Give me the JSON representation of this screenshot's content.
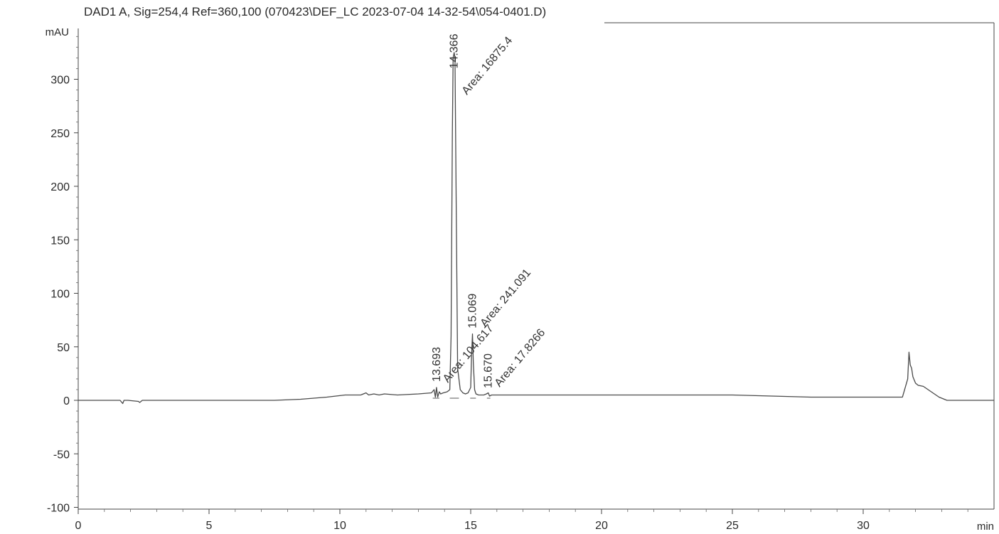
{
  "chart_data": {
    "type": "line",
    "title": "DAD1 A, Sig=254,4 Ref=360,100 (070423\\DEF_LC 2023-07-04 14-32-54\\054-0401.D)",
    "ylabel": "mAU",
    "xlabel": "min",
    "xlim": [
      0,
      35
    ],
    "ylim": [
      -100,
      345
    ],
    "grid": false,
    "x_ticks": [
      "0",
      "5",
      "10",
      "15",
      "20",
      "25",
      "30"
    ],
    "x_tick_values": [
      0,
      5,
      10,
      15,
      20,
      25,
      30
    ],
    "y_ticks": [
      "300",
      "250",
      "200",
      "150",
      "100",
      "50",
      "0",
      "-50",
      "-100"
    ],
    "y_tick_values": [
      300,
      250,
      200,
      150,
      100,
      50,
      0,
      -50,
      -100
    ],
    "series": [
      {
        "x": [
          0,
          1.6,
          1.7,
          1.75,
          1.9,
          2.3,
          2.35,
          2.45,
          3,
          5,
          7.5,
          8.5,
          9.5,
          10.2,
          10.8,
          11.0,
          11.1,
          11.3,
          11.5,
          11.7,
          12.2,
          13.0,
          13.5,
          13.6,
          13.65,
          13.693,
          13.74,
          13.8,
          13.85,
          13.95,
          14.1,
          14.2,
          14.25,
          14.3,
          14.33,
          14.366,
          14.4,
          14.44,
          14.5,
          14.6,
          14.7,
          14.8,
          14.9,
          15.0,
          15.03,
          15.069,
          15.1,
          15.15,
          15.2,
          15.3,
          15.5,
          15.6,
          15.67,
          15.72,
          15.8,
          16.0,
          17.0,
          19.0,
          22.0,
          25.0,
          26.5,
          28.0,
          30.0,
          31.5,
          31.7,
          31.75,
          31.8,
          31.85,
          31.9,
          32.0,
          32.1,
          32.3,
          32.6,
          32.9,
          33.2,
          35
        ],
        "values": [
          0,
          0,
          -3,
          0,
          0,
          -1,
          -2,
          0,
          0,
          0,
          0,
          1,
          3,
          5,
          5,
          7,
          5,
          6,
          5,
          6,
          5,
          6,
          7,
          10,
          3,
          12,
          3,
          8,
          6,
          7,
          8,
          10,
          60,
          250,
          320,
          325,
          320,
          200,
          30,
          10,
          7,
          6,
          7,
          12,
          40,
          62,
          35,
          10,
          6,
          5,
          5,
          6,
          7,
          4,
          5,
          5,
          5,
          5,
          5,
          5,
          4,
          3,
          3,
          3,
          20,
          45,
          33,
          30,
          22,
          16,
          14,
          13,
          8,
          3,
          0,
          0
        ]
      }
    ],
    "annotations": [
      {
        "text": "14.366",
        "x": 14.366
      },
      {
        "text": "Area: 16875.4",
        "x": 14.366
      },
      {
        "text": "15.069",
        "x": 15.069
      },
      {
        "text": "Area: 241.091",
        "x": 15.069
      },
      {
        "text": "13.693",
        "x": 13.693
      },
      {
        "text": "Area: 104.617",
        "x": 13.693
      },
      {
        "text": "15.670",
        "x": 15.67
      },
      {
        "text": "Area: 17.8266",
        "x": 15.67
      }
    ]
  }
}
